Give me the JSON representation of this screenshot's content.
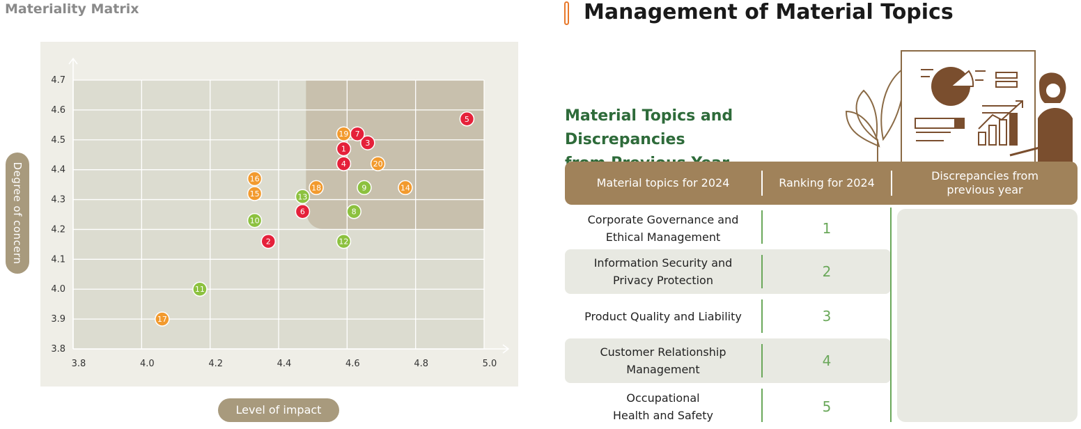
{
  "left_title": "Materiality Matrix",
  "right_title": "Management of Material Topics",
  "section_title_line1": "Material Topics and Discrepancies",
  "section_title_line2": "from Previous Year",
  "colors": {
    "red": "#e5213a",
    "orange": "#f29a2e",
    "green": "#8cc13f",
    "plot_bg": "#dcdcd0",
    "outer_bg": "#efeee7",
    "highlight": "#c8c0ad",
    "brown": "#a0825a",
    "pill": "#a89a7d",
    "green_text": "#2e6b3a"
  },
  "chart_data": {
    "type": "scatter",
    "title": "Materiality Matrix",
    "xlabel": "Level of impact",
    "ylabel": "Degree of concern",
    "xlim": [
      3.8,
      5.0
    ],
    "ylim": [
      3.8,
      4.7
    ],
    "xticks": [
      "3.8",
      "4.0",
      "4.2",
      "4.4",
      "4.6",
      "4.8",
      "5.0"
    ],
    "yticks": [
      "3.8",
      "3.9",
      "4.0",
      "4.1",
      "4.2",
      "4.3",
      "4.4",
      "4.5",
      "4.6",
      "4.7"
    ],
    "highlight_region": {
      "x_from": 4.48,
      "y_from": 4.2
    },
    "points": [
      {
        "id": "1",
        "x": 4.59,
        "y": 4.47,
        "color": "red"
      },
      {
        "id": "2",
        "x": 4.37,
        "y": 4.16,
        "color": "red"
      },
      {
        "id": "3",
        "x": 4.66,
        "y": 4.49,
        "color": "red"
      },
      {
        "id": "4",
        "x": 4.59,
        "y": 4.42,
        "color": "red"
      },
      {
        "id": "5",
        "x": 4.95,
        "y": 4.57,
        "color": "red"
      },
      {
        "id": "6",
        "x": 4.47,
        "y": 4.26,
        "color": "red"
      },
      {
        "id": "7",
        "x": 4.63,
        "y": 4.52,
        "color": "red"
      },
      {
        "id": "8",
        "x": 4.62,
        "y": 4.26,
        "color": "green"
      },
      {
        "id": "9",
        "x": 4.65,
        "y": 4.34,
        "color": "green"
      },
      {
        "id": "10",
        "x": 4.33,
        "y": 4.23,
        "color": "green"
      },
      {
        "id": "11",
        "x": 4.17,
        "y": 4.0,
        "color": "green"
      },
      {
        "id": "12",
        "x": 4.59,
        "y": 4.16,
        "color": "green"
      },
      {
        "id": "13",
        "x": 4.47,
        "y": 4.31,
        "color": "green"
      },
      {
        "id": "14",
        "x": 4.77,
        "y": 4.34,
        "color": "orange"
      },
      {
        "id": "15",
        "x": 4.33,
        "y": 4.32,
        "color": "orange"
      },
      {
        "id": "16",
        "x": 4.33,
        "y": 4.37,
        "color": "orange"
      },
      {
        "id": "17",
        "x": 4.06,
        "y": 3.9,
        "color": "orange"
      },
      {
        "id": "18",
        "x": 4.51,
        "y": 4.34,
        "color": "orange"
      },
      {
        "id": "19",
        "x": 4.59,
        "y": 4.52,
        "color": "orange"
      },
      {
        "id": "20",
        "x": 4.69,
        "y": 4.42,
        "color": "orange"
      }
    ]
  },
  "table": {
    "headers": {
      "topic": "Material topics for 2024",
      "ranking": "Ranking for 2024",
      "disc_line1": "Discrepancies from",
      "disc_line2": "previous year"
    },
    "rows": [
      {
        "line1": "Corporate Governance and",
        "line2": "Ethical Management",
        "rank": "1"
      },
      {
        "line1": "Information Security and",
        "line2": "Privacy Protection",
        "rank": "2"
      },
      {
        "line1": "Product Quality and Liability",
        "line2": "",
        "rank": "3"
      },
      {
        "line1": "Customer Relationship",
        "line2": "Management",
        "rank": "4"
      },
      {
        "line1": "Occupational",
        "line2": "Health and Safety",
        "rank": "5"
      }
    ]
  }
}
